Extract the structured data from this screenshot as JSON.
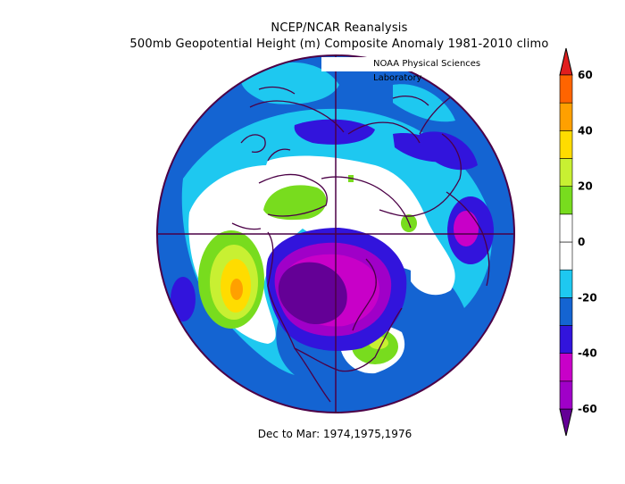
{
  "header": {
    "line1": "NCEP/NCAR Reanalysis",
    "line2": "500mb Geopotential Height (m) Composite Anomaly 1981-2010 climo",
    "credit": "NOAA Physical Sciences Laboratory"
  },
  "footer": {
    "period": "Dec to Mar: 1974,1975,1976"
  },
  "colorbar": {
    "labels": [
      "60",
      "40",
      "20",
      "0",
      "-20",
      "-40",
      "-60"
    ],
    "colors": [
      "#640096",
      "#a000c8",
      "#c800c8",
      "#3214dc",
      "#1464d2",
      "#1ec8f0",
      "#ffffff",
      "#ffffff",
      "#78dc1e",
      "#c8f032",
      "#ffdc00",
      "#ffa000",
      "#ff6400",
      "#e11e1e"
    ]
  },
  "map": {
    "projection": "north-polar-stereographic",
    "base_color": "#1464d2"
  }
}
